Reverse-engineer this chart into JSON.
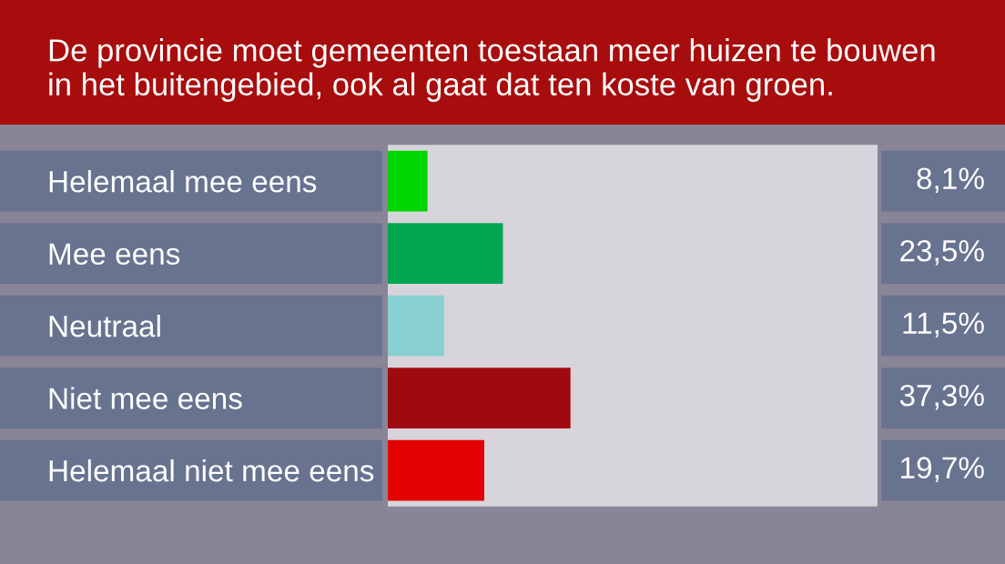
{
  "chart_data": {
    "type": "bar",
    "orientation": "horizontal",
    "title": "De provincie moet gemeenten toestaan meer huizen te bouwen\nin het buitengebied, ook al gaat dat ten koste van groen.",
    "categories": [
      "Helemaal mee eens",
      "Mee eens",
      "Neutraal",
      "Niet mee eens",
      "Helemaal niet mee eens"
    ],
    "values": [
      8.1,
      23.5,
      11.5,
      37.3,
      19.7
    ],
    "colors": [
      "#00d600",
      "#00a651",
      "#88d0d2",
      "#9e0a10",
      "#e30000"
    ],
    "value_labels": [
      "8,1%",
      "23,5%",
      "11,5%",
      "37,3%",
      "19,7%"
    ],
    "xlim": [
      0,
      100
    ],
    "tick_labels": "y"
  }
}
